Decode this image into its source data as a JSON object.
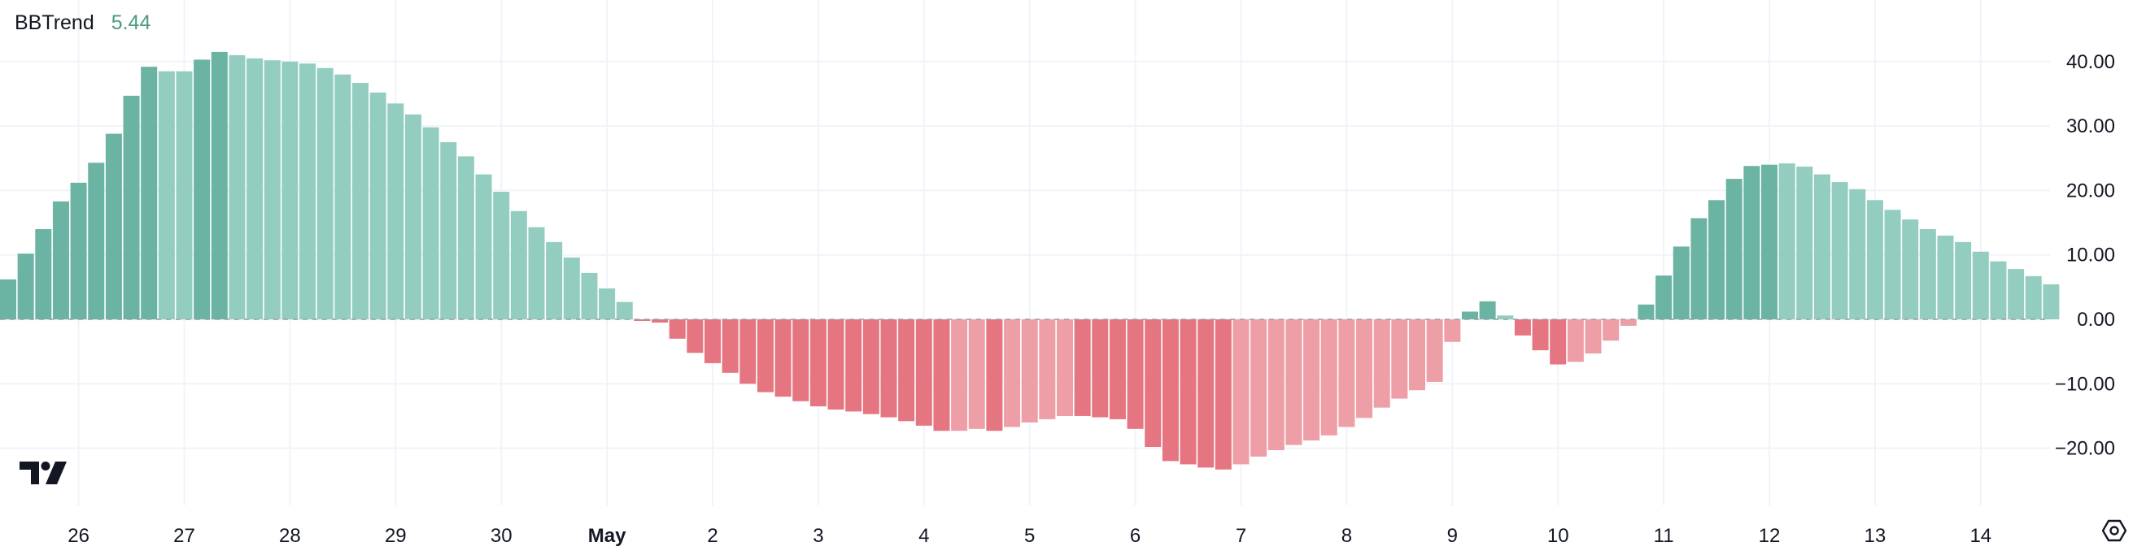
{
  "indicator": {
    "name": "BBTrend",
    "value": "5.44"
  },
  "colors": {
    "pos_strong": "#6bb3a3",
    "pos_light": "#93cdc0",
    "neg_strong": "#e57580",
    "neg_light": "#ee9ea6",
    "value_text": "#4a9b82",
    "grid": "#f0f3fa",
    "axis_text": "#131722"
  },
  "icons": {
    "logo": "tradingview-logo-icon",
    "settings": "settings-gear-icon"
  },
  "chart_data": {
    "type": "bar",
    "title": "BBTrend",
    "ylim": [
      -30,
      48
    ],
    "y_ticks": [
      "40.00",
      "30.00",
      "20.00",
      "10.00",
      "0.00",
      "−10.00",
      "−20.00"
    ],
    "y_tick_values": [
      40,
      30,
      20,
      10,
      0,
      -10,
      -20
    ],
    "x_tick_labels": [
      "26",
      "27",
      "28",
      "29",
      "30",
      "May",
      "2",
      "3",
      "4",
      "5",
      "6",
      "7",
      "8",
      "9",
      "10",
      "11",
      "12",
      "13",
      "14"
    ],
    "x_tick_bar_index": [
      4,
      10,
      16,
      22,
      28,
      34,
      40,
      46,
      52,
      58,
      64,
      70,
      76,
      82,
      88,
      94,
      100,
      106,
      112
    ],
    "bold_tick_labels": [
      "May"
    ],
    "grid": true,
    "series": [
      {
        "values": [
          6.2,
          10.2,
          14.0,
          18.3,
          21.2,
          24.3,
          28.8,
          34.7,
          39.2,
          38.5,
          38.5,
          40.3,
          41.5,
          41.0,
          40.5,
          40.2,
          40.0,
          39.7,
          39.0,
          38.0,
          36.7,
          35.2,
          33.5,
          31.8,
          29.8,
          27.5,
          25.3,
          22.5,
          19.8,
          16.8,
          14.3,
          12.0,
          9.6,
          7.2,
          4.8,
          2.7,
          0.0,
          -0.5,
          -3.0,
          -5.2,
          -6.8,
          -8.3,
          -10.0,
          -11.3,
          -12.0,
          -12.7,
          -13.5,
          -14.0,
          -14.3,
          -14.7,
          -15.2,
          -15.8,
          -16.5,
          -17.3,
          -17.3,
          -17.0,
          -17.3,
          -16.7,
          -16.0,
          -15.5,
          -15.0,
          -15.0,
          -15.2,
          -15.5,
          -17.0,
          -19.8,
          -22.0,
          -22.5,
          -23.0,
          -23.3,
          -22.5,
          -21.3,
          -20.3,
          -19.5,
          -18.8,
          -18.0,
          -16.7,
          -15.3,
          -13.7,
          -12.3,
          -11.0,
          -9.7,
          -3.5,
          1.2,
          2.8,
          0.6,
          -2.5,
          -4.8,
          -7.0,
          -6.6,
          -5.3,
          -3.3,
          -1.0,
          2.3,
          6.8,
          11.3,
          15.7,
          18.5,
          21.8,
          23.8,
          24.0,
          24.2,
          23.7,
          22.5,
          21.3,
          20.2,
          18.5,
          17.0,
          15.5,
          14.0,
          13.0,
          12.0,
          10.5,
          9.0,
          7.8,
          6.7,
          5.44
        ],
        "color_class": [
          "ps",
          "ps",
          "ps",
          "ps",
          "ps",
          "ps",
          "ps",
          "ps",
          "ps",
          "pl",
          "pl",
          "ps",
          "ps",
          "pl",
          "pl",
          "pl",
          "pl",
          "pl",
          "pl",
          "pl",
          "pl",
          "pl",
          "pl",
          "pl",
          "pl",
          "pl",
          "pl",
          "pl",
          "pl",
          "pl",
          "pl",
          "pl",
          "pl",
          "pl",
          "pl",
          "pl",
          "ns",
          "ns",
          "ns",
          "ns",
          "ns",
          "ns",
          "ns",
          "ns",
          "ns",
          "ns",
          "ns",
          "ns",
          "ns",
          "ns",
          "ns",
          "ns",
          "ns",
          "ns",
          "nl",
          "nl",
          "ns",
          "nl",
          "nl",
          "nl",
          "nl",
          "ns",
          "ns",
          "ns",
          "ns",
          "ns",
          "ns",
          "ns",
          "ns",
          "ns",
          "nl",
          "nl",
          "nl",
          "nl",
          "nl",
          "nl",
          "nl",
          "nl",
          "nl",
          "nl",
          "nl",
          "nl",
          "nl",
          "ps",
          "ps",
          "pl",
          "ns",
          "ns",
          "ns",
          "nl",
          "nl",
          "nl",
          "nl",
          "ps",
          "ps",
          "ps",
          "ps",
          "ps",
          "ps",
          "ps",
          "ps",
          "pl",
          "pl",
          "pl",
          "pl",
          "pl",
          "pl",
          "pl",
          "pl",
          "pl",
          "pl",
          "pl",
          "pl",
          "pl",
          "pl",
          "pl",
          "pl"
        ]
      }
    ]
  }
}
